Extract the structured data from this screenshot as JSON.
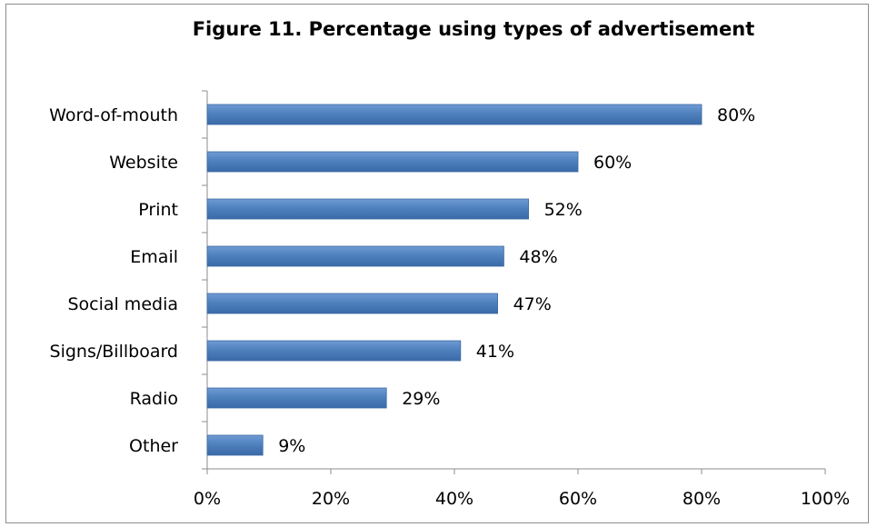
{
  "chart_data": {
    "type": "bar",
    "orientation": "horizontal",
    "title": "Figure 11. Percentage using types of advertisement",
    "categories": [
      "Word-of-mouth",
      "Website",
      "Print",
      "Email",
      "Social media",
      "Signs/Billboard",
      "Radio",
      "Other"
    ],
    "values": [
      80,
      60,
      52,
      48,
      47,
      41,
      29,
      9
    ],
    "data_labels": [
      "80%",
      "60%",
      "52%",
      "48%",
      "47%",
      "41%",
      "29%",
      "9%"
    ],
    "xlim": [
      0,
      100
    ],
    "x_ticks": [
      0,
      20,
      40,
      60,
      80,
      100
    ],
    "x_tick_labels": [
      "0%",
      "20%",
      "40%",
      "60%",
      "80%",
      "100%"
    ],
    "grid": false,
    "legend": "none",
    "bar_color": "#4f81bd"
  }
}
